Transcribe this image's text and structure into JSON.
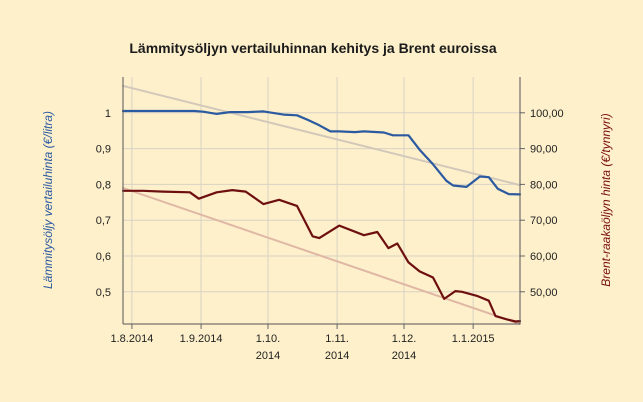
{
  "chart_data": {
    "type": "line",
    "title": "Lämmitysöljyn vertailuhinnan kehitys ja Brent euroissa",
    "ylabel_left": "Lämmitysöljy vertailuhinta (€/litra)",
    "ylabel_right": "Brent-raakaöljyn hinta (€/tynnyri)",
    "x_ticks": [
      {
        "label": [
          "1.8.2014"
        ],
        "day": 0
      },
      {
        "label": [
          "1.9.2014"
        ],
        "day": 31
      },
      {
        "label": [
          "1.10.",
          "2014"
        ],
        "day": 61
      },
      {
        "label": [
          "1.11.",
          "2014"
        ],
        "day": 92
      },
      {
        "label": [
          "1.12.",
          "2014"
        ],
        "day": 122
      },
      {
        "label": [
          "1.1.2015"
        ],
        "day": 153
      }
    ],
    "x_range": [
      -4,
      174
    ],
    "y_left": {
      "range": [
        0.41,
        1.1
      ],
      "ticks": [
        0.5,
        0.6,
        0.7,
        0.8,
        0.9,
        1.0
      ],
      "tick_labels": [
        "0,5",
        "0,6",
        "0,7",
        "0,8",
        "0,9",
        "1"
      ]
    },
    "y_right": {
      "range": [
        41,
        110
      ],
      "ticks": [
        50,
        60,
        70,
        80,
        90,
        100
      ],
      "tick_labels": [
        "50,00",
        "60,00",
        "70,00",
        "80,00",
        "90,00",
        "100,00"
      ]
    },
    "grid": true,
    "series": [
      {
        "name": "",
        "axis": "left",
        "color": "#2c5aa0",
        "x": [
          -4,
          7,
          15,
          28,
          32,
          38,
          44,
          52,
          59,
          68,
          74,
          79,
          84,
          89,
          93,
          100,
          104,
          113,
          117,
          124,
          129,
          135,
          141,
          144,
          150,
          156,
          160,
          164,
          169,
          174
        ],
        "y": [
          1.005,
          1.005,
          1.005,
          1.005,
          1.003,
          0.997,
          1.002,
          1.002,
          1.004,
          0.995,
          0.993,
          0.98,
          0.965,
          0.948,
          0.948,
          0.946,
          0.948,
          0.945,
          0.937,
          0.937,
          0.897,
          0.856,
          0.81,
          0.797,
          0.793,
          0.822,
          0.82,
          0.788,
          0.773,
          0.772
        ]
      },
      {
        "name": "",
        "axis": "right",
        "color": "#6e0f0f",
        "x": [
          -4,
          5,
          14,
          26,
          30,
          38,
          45,
          51,
          59,
          66,
          74,
          81,
          84,
          93,
          104,
          110,
          115,
          119,
          124,
          129,
          135,
          140,
          145,
          148,
          155,
          160,
          163,
          168,
          172,
          174
        ],
        "y": [
          78.2,
          78.2,
          78.0,
          77.8,
          76.0,
          77.8,
          78.4,
          78.0,
          74.5,
          75.7,
          74.0,
          65.5,
          65.0,
          68.5,
          65.8,
          66.7,
          62.2,
          63.5,
          58.2,
          55.7,
          54.0,
          48.0,
          50.2,
          50.0,
          48.8,
          47.5,
          43.2,
          42.3,
          41.7,
          41.8
        ]
      },
      {
        "name": "",
        "axis": "left",
        "color": "#d2c8ba",
        "x": [
          -4,
          174
        ],
        "y": [
          1.075,
          0.798
        ]
      },
      {
        "name": "",
        "axis": "right",
        "color": "#e0b7a4",
        "x": [
          -4,
          174
        ],
        "y": [
          79.0,
          41.0
        ]
      }
    ]
  }
}
